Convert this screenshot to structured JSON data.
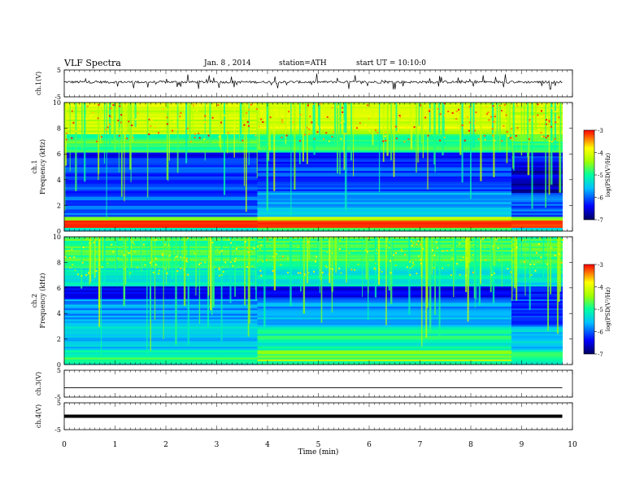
{
  "header": {
    "title": "VLF Spectra",
    "date": "Jan. 8 , 2014",
    "station": "station=ATH",
    "start": "start UT =  10:10:0"
  },
  "chart_data": [
    {
      "type": "line",
      "panel": "ch1-waveform",
      "ylabel": "ch.1(V)",
      "ylim": [
        -5,
        5
      ],
      "yticks": [
        "5",
        "-5"
      ],
      "xlim": [
        0,
        10
      ],
      "baseline_v": 0.5,
      "spike_amplitude_v": 3
    },
    {
      "type": "heatmap",
      "panel": "ch1-spectrogram",
      "ylabel": "ch.1\nFrequency (kHz)",
      "ylim": [
        0,
        10
      ],
      "yticks": [
        "0",
        "2",
        "4",
        "6",
        "8",
        "10"
      ],
      "xlim": [
        0,
        9.8
      ],
      "regime_changes_min": [
        3.8,
        8.8
      ],
      "colorbar": {
        "label": "log(PSD(V²/Hz)",
        "ticks": [
          "-3",
          "-4",
          "-5",
          "-6",
          "-7"
        ],
        "range": [
          -7,
          -3
        ]
      }
    },
    {
      "type": "heatmap",
      "panel": "ch2-spectrogram",
      "ylabel": "ch.2\nFrequency (kHz)",
      "ylim": [
        0,
        10
      ],
      "yticks": [
        "0",
        "2",
        "4",
        "6",
        "8",
        "10"
      ],
      "xlim": [
        0,
        9.8
      ],
      "regime_changes_min": [
        3.8,
        8.8
      ],
      "colorbar": {
        "label": "log(PSD(V²/Hz)",
        "ticks": [
          "-3",
          "-4",
          "-5",
          "-6",
          "-7"
        ],
        "range": [
          -7,
          -3
        ]
      }
    },
    {
      "type": "line",
      "panel": "ch3-waveform",
      "ylabel": "ch.3(V)",
      "ylim": [
        -5,
        5
      ],
      "yticks": [
        "5",
        "-5"
      ],
      "level_v": -1.5
    },
    {
      "type": "line",
      "panel": "ch4-waveform",
      "ylabel": "ch.4(V)",
      "ylim": [
        -5,
        5
      ],
      "yticks": [
        "5",
        "-5"
      ],
      "level_v": 0
    }
  ],
  "xaxis": {
    "label": "Time (min)",
    "ticks": [
      "0",
      "1",
      "2",
      "3",
      "4",
      "5",
      "6",
      "7",
      "8",
      "9",
      "10"
    ],
    "xlim": [
      0,
      10
    ]
  }
}
